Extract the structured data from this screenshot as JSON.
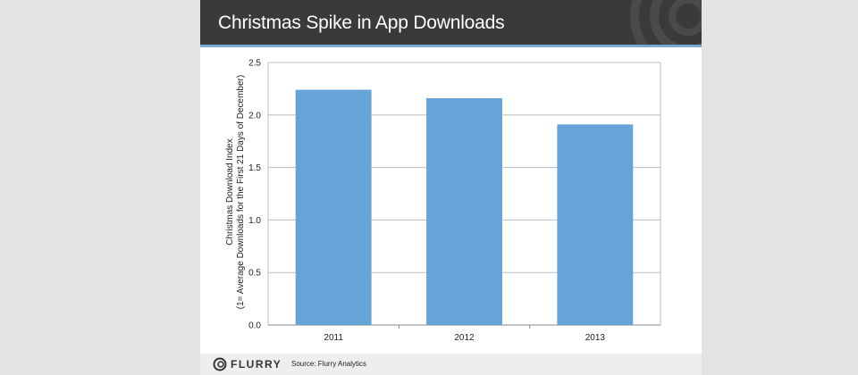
{
  "slide": {
    "title": "Christmas Spike in App Downloads",
    "brand": "FLURRY",
    "source": "Source: Flurry Analytics"
  },
  "chart_data": {
    "type": "bar",
    "title": "",
    "categories": [
      "2011",
      "2012",
      "2013"
    ],
    "values": [
      2.24,
      2.16,
      1.91
    ],
    "ylabel_line1": "Christmas Download Index",
    "ylabel_line2": "(1= Average Downloads for the First 21 Days of December)",
    "xlabel": "",
    "ylim": [
      0,
      2.5
    ],
    "yticks": [
      "0.0",
      "0.5",
      "1.0",
      "1.5",
      "2.0",
      "2.5"
    ],
    "grid": true,
    "bar_color": "#66a3d6"
  },
  "colors": {
    "header": "#3a3a3a",
    "accent": "#7aa7d6",
    "grid": "#bdbdbd"
  }
}
